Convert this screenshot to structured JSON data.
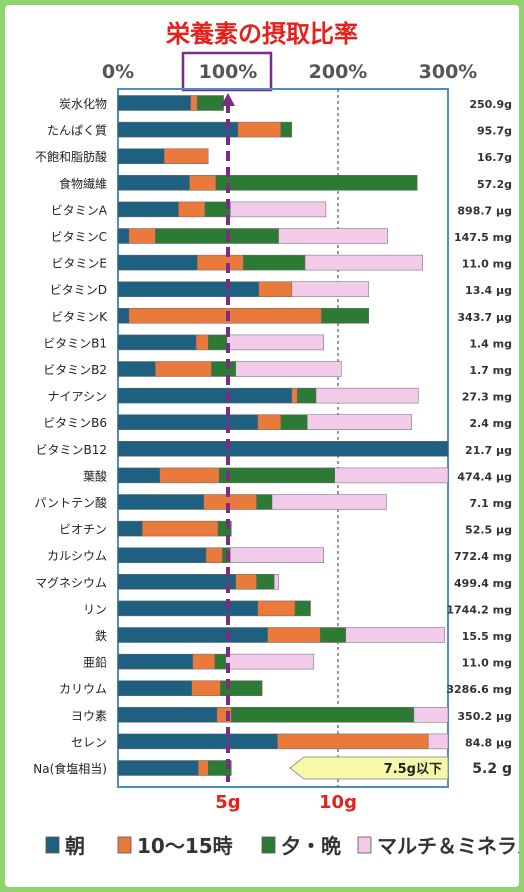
{
  "chart_data": {
    "type": "bar",
    "stacked": true,
    "orientation": "horizontal",
    "title": "栄養素の摂取比率",
    "x_ticks": [
      "0%",
      "100%",
      "200%",
      "300%"
    ],
    "highlighted_tick": "100%",
    "xlim": [
      0,
      300
    ],
    "grid": "dashed vertical at 200%",
    "reference_line": {
      "value": 100,
      "style": "dashed purple with arrow"
    },
    "categories": [
      "炭水化物",
      "たんぱく質",
      "不飽和脂肪酸",
      "食物繊維",
      "ビタミンA",
      "ビタミンC",
      "ビタミンE",
      "ビタミンD",
      "ビタミンK",
      "ビタミンB1",
      "ビタミンB2",
      "ナイアシン",
      "ビタミンB6",
      "ビタミンB12",
      "葉酸",
      "パントテン酸",
      "ビオチン",
      "カルシウム",
      "マグネシウム",
      "リン",
      "鉄",
      "亜鉛",
      "カリウム",
      "ヨウ素",
      "セレン",
      "Na(食塩相当)"
    ],
    "totals": [
      "250.9g",
      "95.7g",
      "16.7g",
      "57.2g",
      "898.7 μg",
      "147.5 mg",
      "11.0 mg",
      "13.4 μg",
      "343.7 μg",
      "1.4 mg",
      "1.7 mg",
      "27.3 mg",
      "2.4 mg",
      "21.7 μg",
      "474.4 μg",
      "7.1 mg",
      "52.5 μg",
      "772.4 mg",
      "499.4 mg",
      "1744.2 mg",
      "15.5 mg",
      "11.0 mg",
      "3286.6 mg",
      "350.2 μg",
      "84.8 μg",
      "5.2 g"
    ],
    "series": [
      {
        "name": "朝",
        "color": "#1f5f7f",
        "values": [
          66,
          109,
          42,
          65,
          55,
          10,
          72,
          128,
          10,
          71,
          34,
          158,
          127,
          300,
          38,
          78,
          22,
          80,
          107,
          127,
          136,
          68,
          67,
          90,
          145,
          73
        ]
      },
      {
        "name": "10～15時",
        "color": "#ea7a3c",
        "values": [
          6,
          39,
          40,
          24,
          24,
          24,
          42,
          30,
          175,
          11,
          51,
          5,
          21,
          0,
          54,
          48,
          69,
          15,
          19,
          34,
          48,
          20,
          26,
          13,
          137,
          9
        ]
      },
      {
        "name": "夕・晩",
        "color": "#2d7a35",
        "values": [
          24,
          10,
          0,
          183,
          23,
          112,
          56,
          0,
          43,
          17,
          22,
          17,
          24,
          0,
          105,
          14,
          12,
          7,
          16,
          14,
          23,
          10,
          38,
          166,
          0,
          21
        ]
      },
      {
        "name": "マルチ＆ミネラル",
        "color": "#f2cbea",
        "values": [
          0,
          0,
          0,
          0,
          87,
          99,
          107,
          70,
          0,
          88,
          96,
          93,
          95,
          0,
          103,
          104,
          0,
          85,
          4,
          0,
          90,
          80,
          0,
          33,
          18,
          0
        ]
      }
    ],
    "x_bottom_labels": [
      "5g",
      "10g"
    ],
    "sodium_note": "7.5g以下",
    "sodium_limit_percent": 300
  }
}
